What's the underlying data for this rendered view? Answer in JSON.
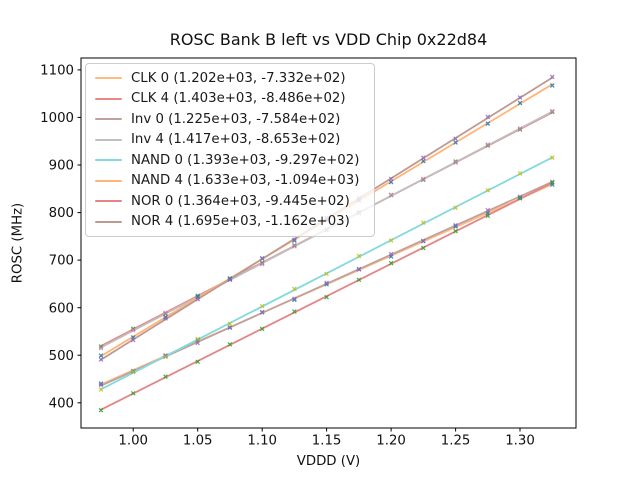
{
  "chart_data": {
    "type": "scatter",
    "title": "ROSC Bank B left vs VDD Chip 0x22d84",
    "xlabel": "VDDD (V)",
    "ylabel": "ROSC (MHz)",
    "xlim": [
      0.9595,
      1.3434
    ],
    "ylim": [
      347,
      1125
    ],
    "xticks": [
      1.0,
      1.05,
      1.1,
      1.15,
      1.2,
      1.25,
      1.3
    ],
    "xtick_labels": [
      "1.00",
      "1.05",
      "1.10",
      "1.15",
      "1.20",
      "1.25",
      "1.30"
    ],
    "yticks": [
      400,
      500,
      600,
      700,
      800,
      900,
      1000,
      1100
    ],
    "ytick_labels": [
      "400",
      "500",
      "600",
      "700",
      "800",
      "900",
      "1000",
      "1100"
    ],
    "grid": false,
    "legend_position": "upper left",
    "marker": "x",
    "x": [
      0.975,
      1.0,
      1.025,
      1.05,
      1.075,
      1.1,
      1.125,
      1.15,
      1.175,
      1.2,
      1.225,
      1.25,
      1.275,
      1.3,
      1.325
    ],
    "series": [
      {
        "name": "CLK 0",
        "legend_label": "CLK 0 (1.202e+03, -7.332e+02)",
        "fit_slope": 1202.0,
        "fit_intercept": -733.2,
        "line_color": "#ffbb80",
        "marker_color": "#1f77b4",
        "y": [
          440.3,
          466.8,
          499.4,
          531.4,
          558.0,
          590.0,
          616.6,
          649.1,
          681.2,
          707.7,
          739.8,
          770.8,
          798.9,
          831.4,
          858.5
        ]
      },
      {
        "name": "CLK 4",
        "legend_label": "CLK 4 (1.403e+03, -8.486e+02)",
        "fit_slope": 1403.0,
        "fit_intercept": -848.6,
        "line_color": "#e88889",
        "marker_color": "#2ca02c",
        "y": [
          518.3,
          555.9,
          587.5,
          625.1,
          661.7,
          694.3,
          730.9,
          763.0,
          800.1,
          836.7,
          868.8,
          907.4,
          941.0,
          974.6,
          1011.7
        ]
      },
      {
        "name": "Inv 0",
        "legend_label": "Inv 0 (1.225e+03, -7.584e+02)",
        "fit_slope": 1225.0,
        "fit_intercept": -758.4,
        "line_color": "#c0a29c",
        "marker_color": "#9467bd",
        "y": [
          438.0,
          465.1,
          498.2,
          525.9,
          559.0,
          590.6,
          618.7,
          652.4,
          680.5,
          712.6,
          740.2,
          773.4,
          805.0,
          833.1,
          864.7
        ]
      },
      {
        "name": "Inv 4",
        "legend_label": "Inv 4 (1.417e+03, -8.653e+02)",
        "fit_slope": 1417.0,
        "fit_intercept": -865.3,
        "line_color": "#bfbfbf",
        "marker_color": "#e377c2",
        "y": [
          514.8,
          552.7,
          589.1,
          621.6,
          659.5,
          691.4,
          728.8,
          765.3,
          798.2,
          837.1,
          871.0,
          905.0,
          942.9,
          976.8,
          1013.2
        ]
      },
      {
        "name": "NAND 0",
        "legend_label": "NAND 0 (1.393e+03, -9.297e+02)",
        "fit_slope": 1393.0,
        "fit_intercept": -929.7,
        "line_color": "#82dade",
        "marker_color": "#bcbd22",
        "y": [
          428.0,
          465.3,
          496.6,
          534.0,
          565.8,
          603.1,
          639.4,
          671.3,
          708.6,
          741.4,
          778.7,
          810.1,
          846.9,
          882.2,
          915.5
        ]
      },
      {
        "name": "NAND 4",
        "legend_label": "NAND 4 (1.633e+03, -1.094e+03)",
        "fit_slope": 1633.0,
        "fit_intercept": -1094.0,
        "line_color": "#ffb577",
        "marker_color": "#1f77b4",
        "y": [
          499.2,
          537.5,
          580.3,
          622.7,
          660.5,
          703.8,
          741.1,
          784.5,
          825.8,
          864.1,
          908.4,
          947.3,
          987.1,
          1030.4,
          1067.2
        ]
      },
      {
        "name": "NOR 0",
        "legend_label": "NOR 0 (1.364e+03, -9.445e+02)",
        "fit_slope": 1364.0,
        "fit_intercept": -944.5,
        "line_color": "#e78384",
        "marker_color": "#2ca02c",
        "y": [
          384.4,
          420.0,
          455.1,
          486.2,
          522.8,
          555.4,
          592.0,
          622.1,
          658.7,
          693.8,
          725.4,
          761.0,
          793.1,
          829.7,
          862.8
        ]
      },
      {
        "name": "NOR 4",
        "legend_label": "NOR 4 (1.695e+03, -1.162e+03)",
        "fit_slope": 1695.0,
        "fit_intercept": -1162.0,
        "line_color": "#bf9a92",
        "marker_color": "#9467bd",
        "y": [
          491.1,
          532.0,
          577.4,
          617.8,
          658.6,
          703.5,
          742.9,
          788.8,
          830.1,
          871.0,
          915.4,
          955.3,
          1001.1,
          1042.0,
          1085.4
        ]
      }
    ]
  }
}
